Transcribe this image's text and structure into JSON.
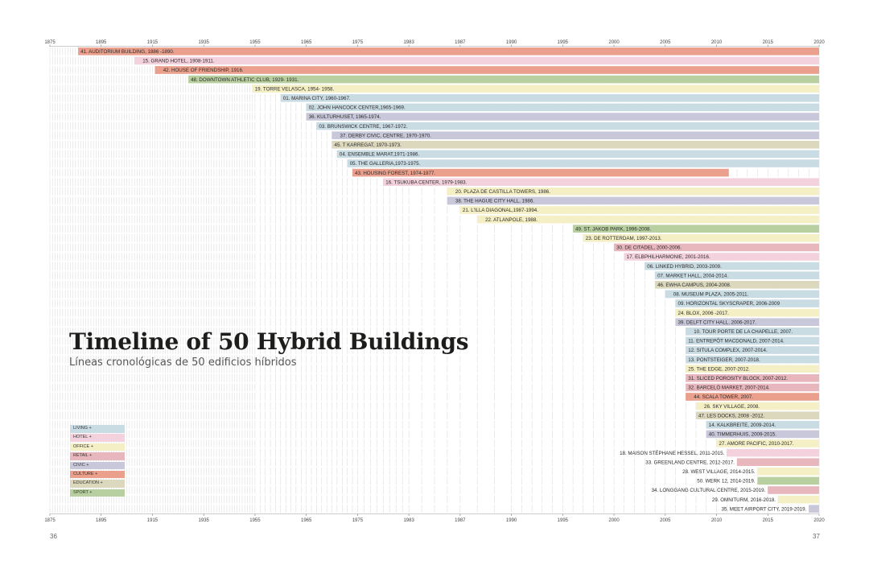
{
  "page": {
    "title": "Timeline of 50 Hybrid Buildings",
    "subtitle": "Líneas cronológicas de 50 edificios híbridos",
    "page_left": "36",
    "page_right": "37"
  },
  "colors": {
    "living": "#c9dbe3",
    "hotel": "#f3d2dd",
    "office": "#f4efc4",
    "retail": "#e8b7bd",
    "civic": "#c9c8da",
    "culture": "#eaa08c",
    "education": "#dbd8bd",
    "sport": "#b8cfa0"
  },
  "legend": [
    {
      "label": "LIVING +",
      "category": "living"
    },
    {
      "label": "HOTEL +",
      "category": "hotel"
    },
    {
      "label": "OFFICE +",
      "category": "office"
    },
    {
      "label": "RETAIL +",
      "category": "retail"
    },
    {
      "label": "CIVIC +",
      "category": "civic"
    },
    {
      "label": "CULTURE +",
      "category": "culture"
    },
    {
      "label": "EDUCATION +",
      "category": "education"
    },
    {
      "label": "SPORT +",
      "category": "sport"
    }
  ],
  "chart_data": {
    "type": "timeline",
    "x_ticks": [
      1875,
      1895,
      1915,
      1935,
      1955,
      1965,
      1975,
      1983,
      1987,
      1990,
      1995,
      2000,
      2005,
      2010,
      2015,
      2020
    ],
    "rows": [
      {
        "label": "41. AUDITORIUM BUILDING, 1886 -1890.",
        "start": 1886,
        "category": "culture",
        "label_side": "inside"
      },
      {
        "label": "15. GRAND HOTEL, 1908-1911.",
        "start": 1908,
        "category": "hotel",
        "label_side": "after"
      },
      {
        "label": "42. HOUSE OF FRIENDSHIP, 1916.",
        "start": 1916,
        "category": "culture",
        "label_side": "after"
      },
      {
        "label": "48. DOWNTOWN ATHLETIC CLUB, 1929- 1931.",
        "start": 1929,
        "category": "sport",
        "label_side": "inside"
      },
      {
        "label": "19. TORRE VELASCA, 1954- 1958.",
        "start": 1954,
        "category": "office",
        "label_side": "inside"
      },
      {
        "label": "01. MARINA CITY, 1960-1967.",
        "start": 1960,
        "category": "living",
        "label_side": "inside"
      },
      {
        "label": "02. JOHN HANCOCK CENTER,1965-1969.",
        "start": 1965,
        "category": "living",
        "label_side": "inside"
      },
      {
        "label": "36. KULTURHUSET, 1965-1974.",
        "start": 1965,
        "category": "civic",
        "label_side": "inside"
      },
      {
        "label": "03. BRUNSWICK CENTRE, 1967-1972.",
        "start": 1967,
        "category": "living",
        "label_side": "inside"
      },
      {
        "label": "37. DERBY CIVIC, CENTRE, 1970-1970.",
        "start": 1970,
        "category": "civic",
        "label_side": "after"
      },
      {
        "label": "45. T KARREGAT, 1970-1973.",
        "start": 1970,
        "category": "education",
        "label_side": "inside"
      },
      {
        "label": "04. ENSEMBLE MARAT,1971-1986.",
        "start": 1971,
        "category": "living",
        "label_side": "inside"
      },
      {
        "label": "05. THE GALLERIA,1973-1975.",
        "start": 1973,
        "category": "living",
        "label_side": "inside"
      },
      {
        "label": "43. HOUSING FOREST, 1974-1977.",
        "start": 1974,
        "end": 2011.2,
        "category": "culture",
        "label_side": "inside"
      },
      {
        "label": "16. TSUKUBA CENTER, 1979-1983.",
        "start": 1979,
        "category": "hotel",
        "label_side": "inside"
      },
      {
        "label": "20. PLAZA DE CASTILLA TOWERS, 1986.",
        "start": 1986,
        "category": "office",
        "label_side": "after"
      },
      {
        "label": "38. THE HAGUE CITY HALL, 1986.",
        "start": 1986,
        "category": "civic",
        "label_side": "after"
      },
      {
        "label": "21. L'ILLA DIAGONAL,1987-1994.",
        "start": 1987,
        "category": "office",
        "label_side": "inside"
      },
      {
        "label": "22. ATLANPOLE, 1988.",
        "start": 1988,
        "category": "office",
        "label_side": "after"
      },
      {
        "label": "49. ST. JAKOB PARK, 1996-2008.",
        "start": 1996,
        "category": "sport",
        "label_side": "inside"
      },
      {
        "label": "23. DE ROTTERDAM, 1997-2013.",
        "start": 1997,
        "category": "office",
        "label_side": "inside"
      },
      {
        "label": "30. DE CITADEL, 2000-2006.",
        "start": 2000,
        "category": "retail",
        "label_side": "inside"
      },
      {
        "label": "17. ELBPHILHARMONIE, 2001-2016.",
        "start": 2001,
        "category": "hotel",
        "label_side": "inside"
      },
      {
        "label": "06. LINKED HYBRID, 2003-2009.",
        "start": 2003,
        "category": "living",
        "label_side": "inside"
      },
      {
        "label": "07. MARKET HALL, 2004-2014.",
        "start": 2004,
        "category": "living",
        "label_side": "inside"
      },
      {
        "label": "46. EWHA CAMPUS, 2004-2008.",
        "start": 2004,
        "category": "education",
        "label_side": "inside"
      },
      {
        "label": "08. MUSEUM PLAZA, 2005-2011.",
        "start": 2005,
        "category": "living",
        "label_side": "after"
      },
      {
        "label": "09. HORIZONTAL SKYSCRAPER, 2006-2009",
        "start": 2006,
        "category": "living",
        "label_side": "inside"
      },
      {
        "label": "24. BLOX, 2006 -2017.",
        "start": 2006,
        "category": "office",
        "label_side": "inside"
      },
      {
        "label": "39. DELFT CITY HALL, 2006-2017.",
        "start": 2006,
        "category": "civic",
        "label_side": "inside"
      },
      {
        "label": "10. TOUR PORTE DE LA CHAPELLE, 2007.",
        "start": 2007,
        "category": "living",
        "label_side": "after"
      },
      {
        "label": "11. ENTREPÔT MACDONALD, 2007-2014.",
        "start": 2007,
        "category": "living",
        "label_side": "inside"
      },
      {
        "label": "12. SITULA COMPLEX, 2007-2014.",
        "start": 2007,
        "category": "living",
        "label_side": "inside"
      },
      {
        "label": "13. PONTSTEIGER, 2007-2018.",
        "start": 2007,
        "category": "living",
        "label_side": "inside"
      },
      {
        "label": "25. THE EDGE, 2007-2012.",
        "start": 2007,
        "category": "office",
        "label_side": "inside"
      },
      {
        "label": "31. SLICED POROSITY BLOCK, 2007-2012.",
        "start": 2007,
        "category": "retail",
        "label_side": "inside"
      },
      {
        "label": "32. BARCELÓ MARKET, 2007-2014.",
        "start": 2007,
        "category": "retail",
        "label_side": "inside"
      },
      {
        "label": "44. SCALA TOWER, 2007.",
        "start": 2007,
        "category": "culture",
        "label_side": "after"
      },
      {
        "label": "26. SKY VILLAGE, 2008.",
        "start": 2008,
        "category": "office",
        "label_side": "after"
      },
      {
        "label": "47. LES DOCKS, 2008 -2012.",
        "start": 2008,
        "category": "education",
        "label_side": "inside"
      },
      {
        "label": "14. KALKBREITE, 2009-2014.",
        "start": 2009,
        "category": "living",
        "label_side": "inside"
      },
      {
        "label": "40. TIMMERHUIS, 2009-2015.",
        "start": 2009,
        "category": "civic",
        "label_side": "inside"
      },
      {
        "label": "27. AMORE PACIFIC, 2010-2017.",
        "start": 2010,
        "category": "office",
        "label_side": "inside"
      },
      {
        "label": "18. MAISON STÉPHANE HESSEL, 2011-2015.",
        "start": 2011,
        "category": "hotel",
        "label_side": "before"
      },
      {
        "label": "33. GREENLAND CENTRE, 2012-2017.",
        "start": 2012,
        "category": "retail",
        "label_side": "before"
      },
      {
        "label": "28. WEST VILLAGE, 2014-2015.",
        "start": 2014,
        "category": "office",
        "label_side": "before"
      },
      {
        "label": "50. WERK 12, 2014-2019.",
        "start": 2014,
        "category": "sport",
        "label_side": "before"
      },
      {
        "label": "34. LONGGANG CULTURAL CENTRE, 2015-2019.",
        "start": 2015,
        "category": "retail",
        "label_side": "before"
      },
      {
        "label": "29. OMNITURM, 2016-2018.",
        "start": 2016,
        "category": "office",
        "label_side": "before"
      },
      {
        "label": "35. MEET AIRPORT CITY, 2019-2019.",
        "start": 2019,
        "category": "civic",
        "label_side": "before"
      }
    ]
  }
}
